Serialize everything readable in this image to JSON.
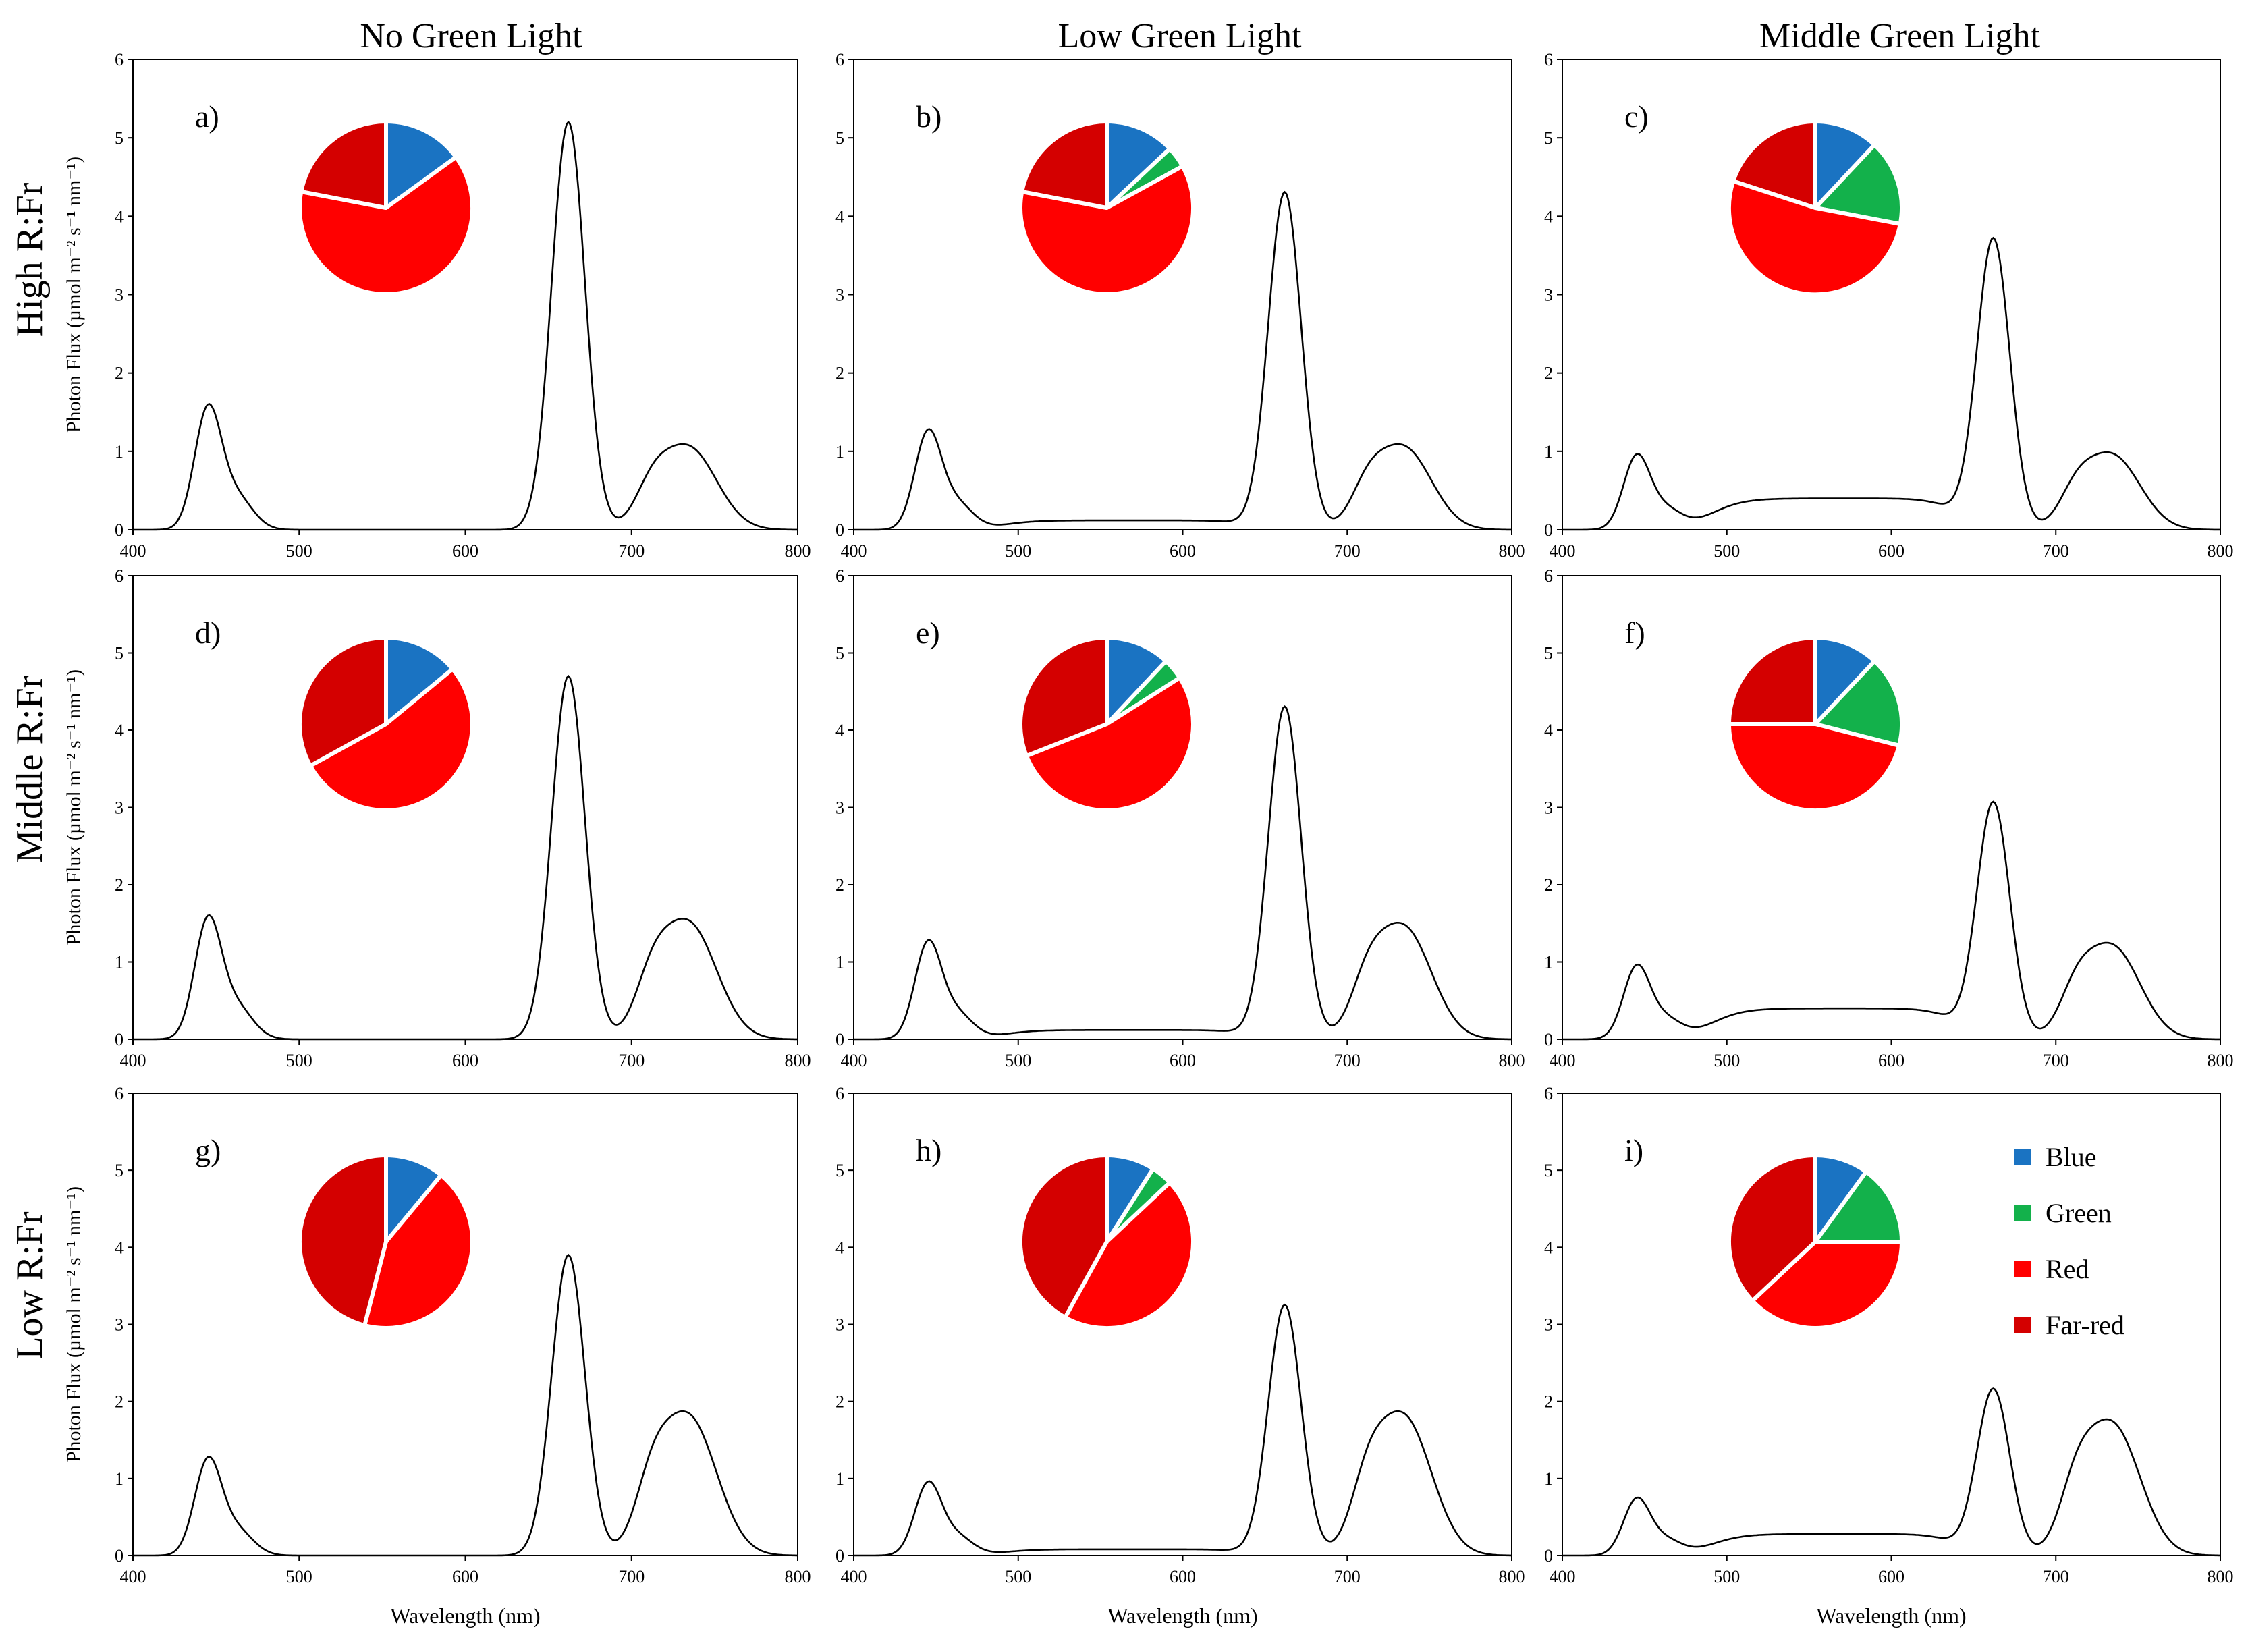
{
  "figure": {
    "column_titles": [
      "No Green Light",
      "Low Green Light",
      "Middle Green Light"
    ],
    "row_titles": [
      "High R:Fr",
      "Middle R:Fr",
      "Low R:Fr"
    ]
  },
  "legend": [
    {
      "label": "Blue",
      "color": "#1a73c2"
    },
    {
      "label": "Green",
      "color": "#13b14b"
    },
    {
      "label": "Red",
      "color": "#ff0000"
    },
    {
      "label": "Far-red",
      "color": "#d40000"
    }
  ],
  "chart_data": [
    {
      "type": "line",
      "panel": "a)",
      "xlabel": "",
      "ylabel": "Photon Flux (µmol m⁻² s⁻¹ nm⁻¹)",
      "xlim": [
        400,
        800
      ],
      "ylim": [
        0,
        6
      ],
      "xticks": [
        "400",
        "500",
        "600",
        "700",
        "800"
      ],
      "yticks": [
        "0",
        "1",
        "2",
        "3",
        "4",
        "5",
        "6"
      ],
      "peaks": {
        "blue": 1.5,
        "green": 0.0,
        "red": 5.2,
        "farred": 1.05
      },
      "pie": {
        "Blue": 15,
        "Green": 0,
        "Red": 63,
        "Far-red": 22
      }
    },
    {
      "type": "line",
      "panel": "b)",
      "xlabel": "",
      "ylabel": "",
      "xlim": [
        400,
        800
      ],
      "ylim": [
        0,
        6
      ],
      "xticks": [
        "400",
        "500",
        "600",
        "700",
        "800"
      ],
      "yticks": [
        "0",
        "1",
        "2",
        "3",
        "4",
        "5",
        "6"
      ],
      "peaks": {
        "blue": 1.2,
        "green": 0.12,
        "red": 4.3,
        "farred": 1.05
      },
      "pie": {
        "Blue": 13,
        "Green": 4,
        "Red": 61,
        "Far-red": 22
      }
    },
    {
      "type": "line",
      "panel": "c)",
      "xlabel": "",
      "ylabel": "",
      "xlim": [
        400,
        800
      ],
      "ylim": [
        0,
        6
      ],
      "xticks": [
        "400",
        "500",
        "600",
        "700",
        "800"
      ],
      "yticks": [
        "0",
        "1",
        "2",
        "3",
        "4",
        "5",
        "6"
      ],
      "peaks": {
        "blue": 0.9,
        "green": 0.4,
        "red": 3.7,
        "farred": 0.95
      },
      "pie": {
        "Blue": 12,
        "Green": 16,
        "Red": 52,
        "Far-red": 20
      }
    },
    {
      "type": "line",
      "panel": "d)",
      "xlabel": "",
      "ylabel": "Photon Flux (µmol m⁻² s⁻¹ nm⁻¹)",
      "xlim": [
        400,
        800
      ],
      "ylim": [
        0,
        6
      ],
      "xticks": [
        "400",
        "500",
        "600",
        "700",
        "800"
      ],
      "yticks": [
        "0",
        "1",
        "2",
        "3",
        "4",
        "5",
        "6"
      ],
      "peaks": {
        "blue": 1.5,
        "green": 0.0,
        "red": 4.7,
        "farred": 1.5
      },
      "pie": {
        "Blue": 14,
        "Green": 0,
        "Red": 53,
        "Far-red": 33
      }
    },
    {
      "type": "line",
      "panel": "e)",
      "xlabel": "",
      "ylabel": "",
      "xlim": [
        400,
        800
      ],
      "ylim": [
        0,
        6
      ],
      "xticks": [
        "400",
        "500",
        "600",
        "700",
        "800"
      ],
      "yticks": [
        "0",
        "1",
        "2",
        "3",
        "4",
        "5",
        "6"
      ],
      "peaks": {
        "blue": 1.2,
        "green": 0.12,
        "red": 4.3,
        "farred": 1.45
      },
      "pie": {
        "Blue": 12,
        "Green": 4,
        "Red": 53,
        "Far-red": 31
      }
    },
    {
      "type": "line",
      "panel": "f)",
      "xlabel": "",
      "ylabel": "",
      "xlim": [
        400,
        800
      ],
      "ylim": [
        0,
        6
      ],
      "xticks": [
        "400",
        "500",
        "600",
        "700",
        "800"
      ],
      "yticks": [
        "0",
        "1",
        "2",
        "3",
        "4",
        "5",
        "6"
      ],
      "peaks": {
        "blue": 0.9,
        "green": 0.4,
        "red": 3.05,
        "farred": 1.2
      },
      "pie": {
        "Blue": 12,
        "Green": 17,
        "Red": 46,
        "Far-red": 25
      }
    },
    {
      "type": "line",
      "panel": "g)",
      "xlabel": "Wavelength (nm)",
      "ylabel": "Photon Flux (µmol m⁻² s⁻¹ nm⁻¹)",
      "xlim": [
        400,
        800
      ],
      "ylim": [
        0,
        6
      ],
      "xticks": [
        "400",
        "500",
        "600",
        "700",
        "800"
      ],
      "yticks": [
        "0",
        "1",
        "2",
        "3",
        "4",
        "5",
        "6"
      ],
      "peaks": {
        "blue": 1.2,
        "green": 0.0,
        "red": 3.9,
        "farred": 1.8
      },
      "pie": {
        "Blue": 11,
        "Green": 0,
        "Red": 43,
        "Far-red": 46
      }
    },
    {
      "type": "line",
      "panel": "h)",
      "xlabel": "Wavelength (nm)",
      "ylabel": "",
      "xlim": [
        400,
        800
      ],
      "ylim": [
        0,
        6
      ],
      "xticks": [
        "400",
        "500",
        "600",
        "700",
        "800"
      ],
      "yticks": [
        "0",
        "1",
        "2",
        "3",
        "4",
        "5",
        "6"
      ],
      "peaks": {
        "blue": 0.9,
        "green": 0.08,
        "red": 3.25,
        "farred": 1.8
      },
      "pie": {
        "Blue": 9,
        "Green": 4,
        "Red": 45,
        "Far-red": 42
      }
    },
    {
      "type": "line",
      "panel": "i)",
      "xlabel": "Wavelength (nm)",
      "ylabel": "",
      "xlim": [
        400,
        800
      ],
      "ylim": [
        0,
        6
      ],
      "xticks": [
        "400",
        "500",
        "600",
        "700",
        "800"
      ],
      "yticks": [
        "0",
        "1",
        "2",
        "3",
        "4",
        "5",
        "6"
      ],
      "peaks": {
        "blue": 0.7,
        "green": 0.28,
        "red": 2.15,
        "farred": 1.7
      },
      "pie": {
        "Blue": 10,
        "Green": 15,
        "Red": 38,
        "Far-red": 37
      }
    }
  ]
}
